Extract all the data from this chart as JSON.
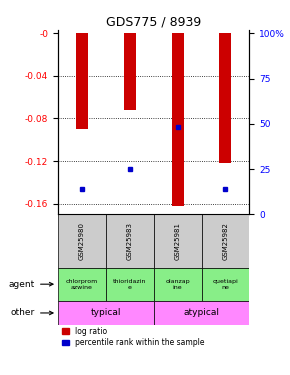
{
  "title": "GDS775 / 8939",
  "samples": [
    "GSM25980",
    "GSM25983",
    "GSM25981",
    "GSM25982"
  ],
  "log_ratios": [
    -0.09,
    -0.072,
    -0.162,
    -0.122
  ],
  "percentile_ranks": [
    14,
    25,
    48,
    14
  ],
  "agents": [
    "chlorprom\nazwine",
    "thioridazin\ne",
    "olanzap\nine",
    "quetiapi\nne"
  ],
  "other_groups": [
    [
      "typical",
      2
    ],
    [
      "atypical",
      2
    ]
  ],
  "other_color": "#ff88ff",
  "agent_color": "#88ee88",
  "ylim": [
    -0.17,
    0.003
  ],
  "yticks_left": [
    0.0,
    -0.04,
    -0.08,
    -0.12,
    -0.16
  ],
  "ytick_labels_left": [
    "-0",
    "-0.04",
    "-0.08",
    "-0.12",
    "-0.16"
  ],
  "yticks_right_pct": [
    100,
    75,
    50,
    25,
    0
  ],
  "ytick_labels_right": [
    "100%",
    "75",
    "50",
    "25",
    "0"
  ],
  "bar_color": "#cc0000",
  "percentile_color": "#0000cc",
  "bar_width": 0.25,
  "background_color": "#ffffff",
  "label_area_bg": "#cccccc",
  "title_fontsize": 9
}
